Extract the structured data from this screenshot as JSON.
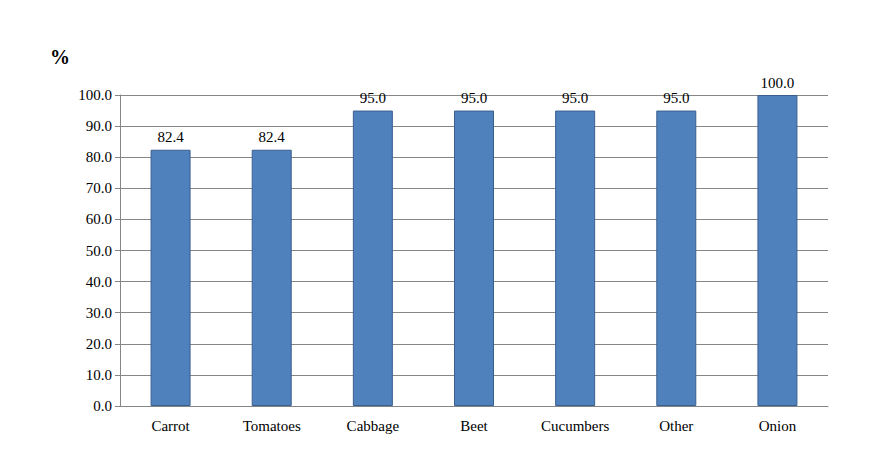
{
  "chart_data": {
    "type": "bar",
    "ylabel": "%",
    "categories": [
      "Carrot",
      "Tomatoes",
      "Cabbage",
      "Beet",
      "Cucumbers",
      "Other",
      "Onion"
    ],
    "values": [
      82.4,
      82.4,
      95,
      95,
      95,
      95,
      100
    ],
    "value_labels": [
      "82.4",
      "82.4",
      "95.0",
      "95.0",
      "95.0",
      "95.0",
      "100.0"
    ],
    "data_labels": true,
    "color": "#4f81bd",
    "ylim": [
      0,
      100
    ],
    "yticks": [
      {
        "value": 0,
        "label": "0.0"
      },
      {
        "value": 10,
        "label": "10.0"
      },
      {
        "value": 20,
        "label": "20.0"
      },
      {
        "value": 30,
        "label": "30.0"
      },
      {
        "value": 40,
        "label": "40.0"
      },
      {
        "value": 50,
        "label": "50.0"
      },
      {
        "value": 60,
        "label": "60.0"
      },
      {
        "value": 70,
        "label": "70.0"
      },
      {
        "value": 80,
        "label": "80.0"
      },
      {
        "value": 90,
        "label": "90.0"
      },
      {
        "value": 100,
        "label": "100.0"
      }
    ],
    "grid": true
  }
}
